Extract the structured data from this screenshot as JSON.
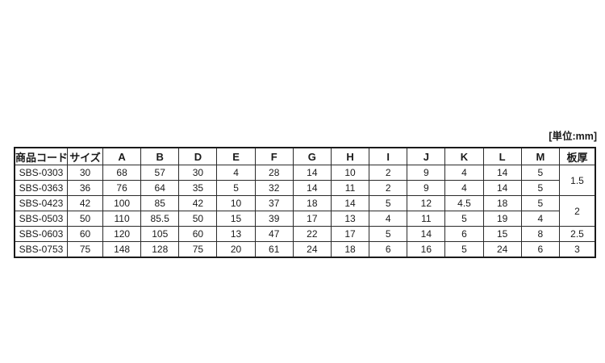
{
  "unit_label": "[単位:mm]",
  "colors": {
    "background": "#ffffff",
    "border": "#1a1a1a",
    "text": "#1a1a1a"
  },
  "table": {
    "headers": [
      "商品コード",
      "サイズ",
      "A",
      "B",
      "D",
      "E",
      "F",
      "G",
      "H",
      "I",
      "J",
      "K",
      "L",
      "M",
      "板厚"
    ],
    "rows": [
      {
        "cells": [
          "SBS-0303",
          "30",
          "68",
          "57",
          "30",
          "4",
          "28",
          "14",
          "10",
          "2",
          "9",
          "4",
          "14",
          "5"
        ],
        "thickness": "1.5",
        "thickness_rowspan": 2
      },
      {
        "cells": [
          "SBS-0363",
          "36",
          "76",
          "64",
          "35",
          "5",
          "32",
          "14",
          "11",
          "2",
          "9",
          "4",
          "14",
          "5"
        ],
        "thickness": null,
        "thickness_rowspan": 0
      },
      {
        "cells": [
          "SBS-0423",
          "42",
          "100",
          "85",
          "42",
          "10",
          "37",
          "18",
          "14",
          "5",
          "12",
          "4.5",
          "18",
          "5"
        ],
        "thickness": "2",
        "thickness_rowspan": 2
      },
      {
        "cells": [
          "SBS-0503",
          "50",
          "110",
          "85.5",
          "50",
          "15",
          "39",
          "17",
          "13",
          "4",
          "11",
          "5",
          "19",
          "4"
        ],
        "thickness": null,
        "thickness_rowspan": 0
      },
      {
        "cells": [
          "SBS-0603",
          "60",
          "120",
          "105",
          "60",
          "13",
          "47",
          "22",
          "17",
          "5",
          "14",
          "6",
          "15",
          "8"
        ],
        "thickness": "2.5",
        "thickness_rowspan": 1
      },
      {
        "cells": [
          "SBS-0753",
          "75",
          "148",
          "128",
          "75",
          "20",
          "61",
          "24",
          "18",
          "6",
          "16",
          "5",
          "24",
          "6"
        ],
        "thickness": "3",
        "thickness_rowspan": 1
      }
    ]
  }
}
